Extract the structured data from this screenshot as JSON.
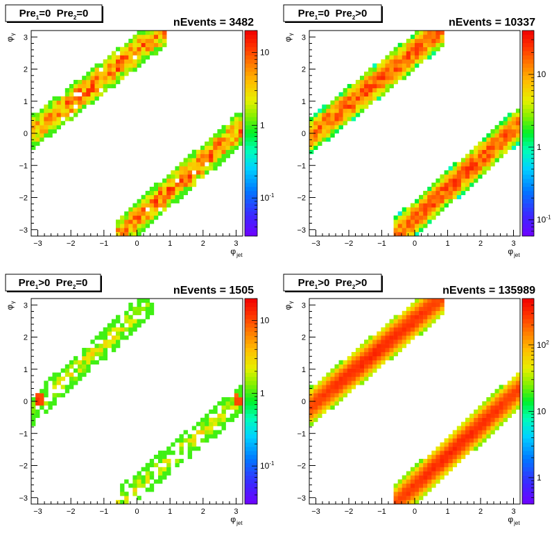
{
  "chart_data": [
    {
      "type": "heatmap",
      "title": "Pre1=0 Pre2=0",
      "title_parts": {
        "a": "Pre",
        "a_sub": "1",
        "a_val": "=0",
        "b": "Pre",
        "b_sub": "2",
        "b_val": "=0"
      },
      "annotation": "nEvents = 3482",
      "xlabel": {
        "main": "φ",
        "sub": "jet"
      },
      "ylabel": {
        "main": "φ",
        "sub": "γ"
      },
      "x_ticks": [
        -3,
        -2,
        -1,
        0,
        1,
        2,
        3
      ],
      "y_ticks": [
        -3,
        -2,
        -1,
        0,
        1,
        2,
        3
      ],
      "xlim": [
        -3.2,
        3.2
      ],
      "ylim": [
        -3.2,
        3.2
      ],
      "zscale": "log",
      "zlim": [
        0.03,
        20
      ],
      "z_ticks": [
        {
          "value": 10,
          "label": "10"
        },
        {
          "value": 1,
          "label": "1"
        },
        {
          "value": 0.1,
          "label": "10",
          "sup": "-1"
        }
      ],
      "bands": [
        {
          "x_range": [
            -3.2,
            0.8
          ],
          "y_at_x": [
            [
              -3.2,
              0
            ],
            [
              0.8,
              3.2
            ]
          ],
          "width": 1.1,
          "peak": 10
        },
        {
          "x_range": [
            -0.6,
            3.2
          ],
          "y_at_x": [
            [
              -0.6,
              -3.2
            ],
            [
              3.2,
              0.2
            ]
          ],
          "width": 1.1,
          "peak": 10
        }
      ],
      "hot_spots": [],
      "texture": "noisy",
      "occupancy": 0.97,
      "seed": 11
    },
    {
      "type": "heatmap",
      "title": "Pre1=0 Pre2>0",
      "title_parts": {
        "a": "Pre",
        "a_sub": "1",
        "a_val": "=0",
        "b": "Pre",
        "b_sub": "2",
        "b_val": ">0"
      },
      "annotation": "nEvents = 10337",
      "xlabel": {
        "main": "φ",
        "sub": "jet"
      },
      "ylabel": {
        "main": "φ",
        "sub": "γ"
      },
      "x_ticks": [
        -3,
        -2,
        -1,
        0,
        1,
        2,
        3
      ],
      "y_ticks": [
        -3,
        -2,
        -1,
        0,
        1,
        2,
        3
      ],
      "xlim": [
        -3.2,
        3.2
      ],
      "ylim": [
        -3.2,
        3.2
      ],
      "zscale": "log",
      "zlim": [
        0.06,
        40
      ],
      "z_ticks": [
        {
          "value": 10,
          "label": "10"
        },
        {
          "value": 1,
          "label": "1"
        },
        {
          "value": 0.1,
          "label": "10",
          "sup": "-1"
        }
      ],
      "bands": [
        {
          "x_range": [
            -3.2,
            0.9
          ],
          "y_at_x": [
            [
              -3.2,
              -0.1
            ],
            [
              0.9,
              3.3
            ]
          ],
          "width": 1.15,
          "peak": 22
        },
        {
          "x_range": [
            -0.6,
            3.2
          ],
          "y_at_x": [
            [
              -0.6,
              -3.2
            ],
            [
              3.2,
              0.3
            ]
          ],
          "width": 1.15,
          "peak": 22
        }
      ],
      "hot_spots": [],
      "texture": "medium",
      "occupancy": 1,
      "seed": 23
    },
    {
      "type": "heatmap",
      "title": "Pre1>0 Pre2=0",
      "title_parts": {
        "a": "Pre",
        "a_sub": "1",
        "a_val": ">0",
        "b": "Pre",
        "b_sub": "2",
        "b_val": "=0"
      },
      "annotation": "nEvents = 1505",
      "xlabel": {
        "main": "φ",
        "sub": "jet"
      },
      "ylabel": {
        "main": "φ",
        "sub": "γ"
      },
      "x_ticks": [
        -3,
        -2,
        -1,
        0,
        1,
        2,
        3
      ],
      "y_ticks": [
        -3,
        -2,
        -1,
        0,
        1,
        2,
        3
      ],
      "xlim": [
        -3.2,
        3.2
      ],
      "ylim": [
        -3.2,
        3.2
      ],
      "zscale": "log",
      "zlim": [
        0.03,
        20
      ],
      "z_ticks": [
        {
          "value": 10,
          "label": "10"
        },
        {
          "value": 1,
          "label": "1"
        },
        {
          "value": 0.1,
          "label": "10",
          "sup": "-1"
        }
      ],
      "bands": [
        {
          "x_range": [
            -3.2,
            0.5
          ],
          "y_at_x": [
            [
              -3.2,
              -0.3
            ],
            [
              0.5,
              3.2
            ]
          ],
          "width": 0.95,
          "peak": 2.2
        },
        {
          "x_range": [
            -0.6,
            3.2
          ],
          "y_at_x": [
            [
              -0.6,
              -3.2
            ],
            [
              3.2,
              0.1
            ]
          ],
          "width": 0.95,
          "peak": 2.2
        }
      ],
      "hot_spots": [
        {
          "x": -3.0,
          "y": 0.0,
          "value": 12
        },
        {
          "x": -2.9,
          "y": 0.05,
          "value": 10
        },
        {
          "x": 3.1,
          "y": 0.0,
          "value": 10
        },
        {
          "x": 3.0,
          "y": 0.1,
          "value": 8
        }
      ],
      "texture": "sparse",
      "occupancy": 0.72,
      "seed": 37
    },
    {
      "type": "heatmap",
      "title": "Pre1>0 Pre2>0",
      "title_parts": {
        "a": "Pre",
        "a_sub": "1",
        "a_val": ">0",
        "b": "Pre",
        "b_sub": "2",
        "b_val": ">0"
      },
      "annotation": "nEvents = 135989",
      "xlabel": {
        "main": "φ",
        "sub": "jet"
      },
      "ylabel": {
        "main": "φ",
        "sub": "γ"
      },
      "x_ticks": [
        -3,
        -2,
        -1,
        0,
        1,
        2,
        3
      ],
      "y_ticks": [
        -3,
        -2,
        -1,
        0,
        1,
        2,
        3
      ],
      "xlim": [
        -3.2,
        3.2
      ],
      "ylim": [
        -3.2,
        3.2
      ],
      "zscale": "log",
      "zlim": [
        0.4,
        500
      ],
      "z_ticks": [
        {
          "value": 100,
          "label": "10",
          "sup": "2"
        },
        {
          "value": 10,
          "label": "10"
        },
        {
          "value": 1,
          "label": "1"
        }
      ],
      "bands": [
        {
          "x_range": [
            -3.2,
            0.9
          ],
          "y_at_x": [
            [
              -3.2,
              -0.2
            ],
            [
              0.9,
              3.3
            ]
          ],
          "width": 1.2,
          "peak": 320
        },
        {
          "x_range": [
            -0.6,
            3.2
          ],
          "y_at_x": [
            [
              -0.6,
              -3.2
            ],
            [
              3.2,
              0.4
            ]
          ],
          "width": 1.2,
          "peak": 320
        }
      ],
      "hot_spots": [],
      "texture": "smooth",
      "occupancy": 1,
      "seed": 41
    }
  ]
}
